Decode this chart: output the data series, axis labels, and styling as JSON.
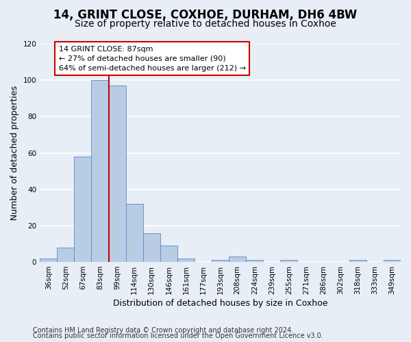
{
  "title1": "14, GRINT CLOSE, COXHOE, DURHAM, DH6 4BW",
  "title2": "Size of property relative to detached houses in Coxhoe",
  "xlabel": "Distribution of detached houses by size in Coxhoe",
  "ylabel": "Number of detached properties",
  "categories": [
    "36sqm",
    "52sqm",
    "67sqm",
    "83sqm",
    "99sqm",
    "114sqm",
    "130sqm",
    "146sqm",
    "161sqm",
    "177sqm",
    "193sqm",
    "208sqm",
    "224sqm",
    "239sqm",
    "255sqm",
    "271sqm",
    "286sqm",
    "302sqm",
    "318sqm",
    "333sqm",
    "349sqm"
  ],
  "values": [
    2,
    8,
    58,
    100,
    97,
    32,
    16,
    9,
    2,
    0,
    1,
    3,
    1,
    0,
    1,
    0,
    0,
    0,
    1,
    0,
    1
  ],
  "bar_color": "#b8cce4",
  "bar_edge_color": "#5b8ac5",
  "property_bin_index": 3,
  "vline_color": "#cc0000",
  "annotation_line1": "14 GRINT CLOSE: 87sqm",
  "annotation_line2": "← 27% of detached houses are smaller (90)",
  "annotation_line3": "64% of semi-detached houses are larger (212) →",
  "annotation_box_color": "#ffffff",
  "annotation_box_edge_color": "#cc0000",
  "ylim": [
    0,
    120
  ],
  "yticks": [
    0,
    20,
    40,
    60,
    80,
    100,
    120
  ],
  "footer1": "Contains HM Land Registry data © Crown copyright and database right 2024.",
  "footer2": "Contains public sector information licensed under the Open Government Licence v3.0.",
  "background_color": "#e8eef5",
  "plot_background_color": "#e8eef5",
  "grid_color": "#ffffff",
  "title1_fontsize": 12,
  "title2_fontsize": 10,
  "axis_label_fontsize": 9,
  "tick_fontsize": 7.5,
  "footer_fontsize": 7,
  "annotation_fontsize": 8
}
